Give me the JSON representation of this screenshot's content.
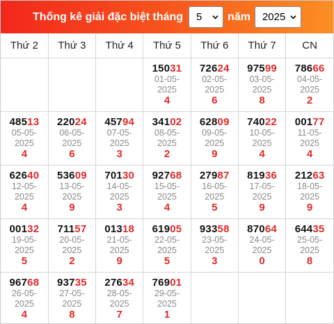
{
  "header": {
    "title": "Thống kê giải đặc biệt tháng",
    "month_value": "5",
    "year_label": "năm",
    "year_value": "2025"
  },
  "weekdays": [
    "Thứ 2",
    "Thứ 3",
    "Thứ 4",
    "Thứ 5",
    "Thứ 6",
    "Thứ 7",
    "CN"
  ],
  "weeks": [
    [
      null,
      null,
      null,
      {
        "prefix": "150",
        "tail": "31",
        "date": "01-05-",
        "year": "2025",
        "total": "4"
      },
      {
        "prefix": "726",
        "tail": "24",
        "date": "02-05-",
        "year": "2025",
        "total": "6"
      },
      {
        "prefix": "975",
        "tail": "99",
        "date": "03-05-",
        "year": "2025",
        "total": "8"
      },
      {
        "prefix": "786",
        "tail": "66",
        "date": "04-05-",
        "year": "2025",
        "total": "2"
      }
    ],
    [
      {
        "prefix": "485",
        "tail": "13",
        "date": "05-05-",
        "year": "2025",
        "total": "4"
      },
      {
        "prefix": "220",
        "tail": "24",
        "date": "06-05-",
        "year": "2025",
        "total": "6"
      },
      {
        "prefix": "457",
        "tail": "94",
        "date": "07-05-",
        "year": "2025",
        "total": "3"
      },
      {
        "prefix": "341",
        "tail": "02",
        "date": "08-05-",
        "year": "2025",
        "total": "2"
      },
      {
        "prefix": "628",
        "tail": "09",
        "date": "09-05-",
        "year": "2025",
        "total": "9"
      },
      {
        "prefix": "740",
        "tail": "22",
        "date": "10-05-",
        "year": "2025",
        "total": "4"
      },
      {
        "prefix": "001",
        "tail": "77",
        "date": "11-05-",
        "year": "2025",
        "total": "4"
      }
    ],
    [
      {
        "prefix": "626",
        "tail": "40",
        "date": "12-05-",
        "year": "2025",
        "total": "4"
      },
      {
        "prefix": "536",
        "tail": "09",
        "date": "13-05-",
        "year": "2025",
        "total": "9"
      },
      {
        "prefix": "701",
        "tail": "30",
        "date": "14-05-",
        "year": "2025",
        "total": "3"
      },
      {
        "prefix": "927",
        "tail": "68",
        "date": "15-05-",
        "year": "2025",
        "total": "4"
      },
      {
        "prefix": "279",
        "tail": "87",
        "date": "16-05-",
        "year": "2025",
        "total": "5"
      },
      {
        "prefix": "819",
        "tail": "36",
        "date": "17-05-",
        "year": "2025",
        "total": "9"
      },
      {
        "prefix": "212",
        "tail": "63",
        "date": "18-05-",
        "year": "2025",
        "total": "9"
      }
    ],
    [
      {
        "prefix": "001",
        "tail": "32",
        "date": "19-05-",
        "year": "2025",
        "total": "5"
      },
      {
        "prefix": "711",
        "tail": "57",
        "date": "20-05-",
        "year": "2025",
        "total": "2"
      },
      {
        "prefix": "013",
        "tail": "18",
        "date": "21-05-",
        "year": "2025",
        "total": "9"
      },
      {
        "prefix": "619",
        "tail": "05",
        "date": "22-05-",
        "year": "2025",
        "total": "5"
      },
      {
        "prefix": "933",
        "tail": "58",
        "date": "23-05-",
        "year": "2025",
        "total": "3"
      },
      {
        "prefix": "870",
        "tail": "64",
        "date": "24-05-",
        "year": "2025",
        "total": "0"
      },
      {
        "prefix": "644",
        "tail": "35",
        "date": "25-05-",
        "year": "2025",
        "total": "8"
      }
    ],
    [
      {
        "prefix": "967",
        "tail": "68",
        "date": "26-05-",
        "year": "2025",
        "total": "4"
      },
      {
        "prefix": "937",
        "tail": "35",
        "date": "27-05-",
        "year": "2025",
        "total": "8"
      },
      {
        "prefix": "276",
        "tail": "34",
        "date": "28-05-",
        "year": "2025",
        "total": "7"
      },
      {
        "prefix": "769",
        "tail": "01",
        "date": "29-05-",
        "year": "2025",
        "total": "1"
      },
      null,
      null,
      null
    ]
  ],
  "colors": {
    "header_start": "#f2271b",
    "header_end": "#fb8f22",
    "tail_red": "#e02a2a",
    "date_gray": "#8a8a8a"
  },
  "icons": {
    "dropdown": "chevron-down-icon"
  }
}
